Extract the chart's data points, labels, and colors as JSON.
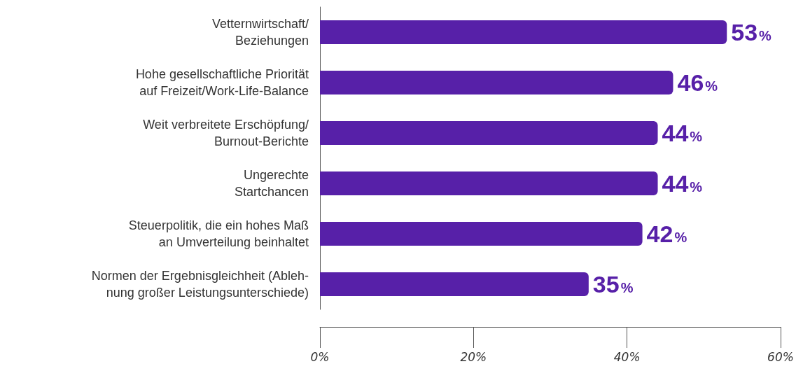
{
  "chart_data": {
    "type": "bar",
    "orientation": "horizontal",
    "categories": [
      "Vetternwirtschaft/\nBeziehungen",
      "Hohe gesellschaftliche Priorität\nauf Freizeit/Work-Life-Balance",
      "Weit verbreitete Erschöpfung/\nBurnout-Berichte",
      "Ungerechte\nStartchancen",
      "Steuerpolitik, die ein hohes Maß\nan Umverteilung beinhaltet",
      "Normen der Ergebnisgleichheit (Ableh-\nnung großer Leistungsunterschiede)"
    ],
    "values": [
      53,
      46,
      44,
      44,
      42,
      35
    ],
    "value_labels": [
      "53%",
      "46%",
      "44%",
      "44%",
      "42%",
      "35%"
    ],
    "color": "#5720a8",
    "xlim": [
      0,
      60
    ],
    "xticks": [
      {
        "value": 0,
        "label": "0%"
      },
      {
        "value": 20,
        "label": "20%"
      },
      {
        "value": 40,
        "label": "40%"
      },
      {
        "value": 60,
        "label": "60%"
      }
    ],
    "grid": false
  }
}
